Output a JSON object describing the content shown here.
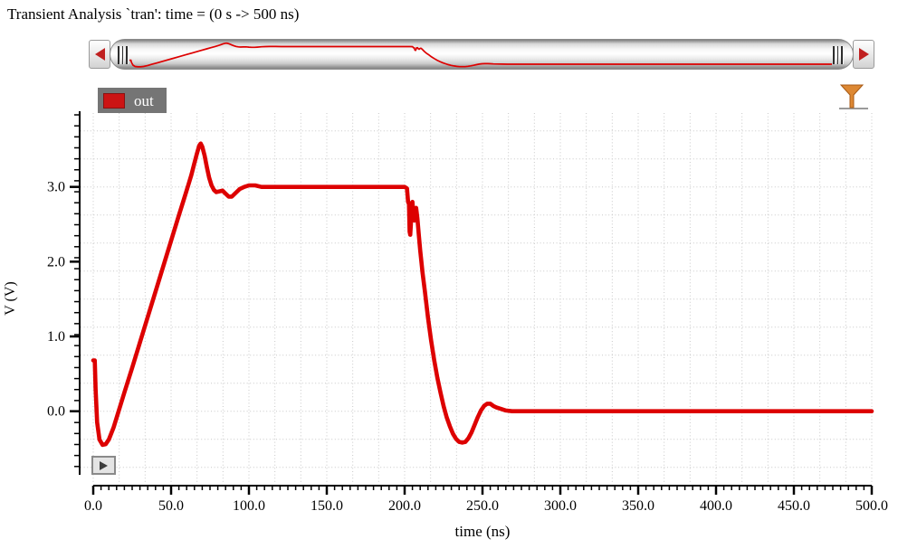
{
  "header": {
    "title": "Transient Analysis `tran': time = (0 s -> 500 ns)"
  },
  "overview_bar": {
    "left_arrow_icon": "scroll-left-arrow-icon",
    "right_arrow_icon": "scroll-right-arrow-icon",
    "left_grip_icon": "drag-grip-icon",
    "right_grip_icon": "drag-grip-icon",
    "arrow_color": "#c02020"
  },
  "legend": {
    "items": [
      {
        "label": "out",
        "color": "#cc1414"
      }
    ]
  },
  "toolbar": {
    "filter_icon": "funnel-icon",
    "filter_color": "#dd8833"
  },
  "strip_button": {
    "icon": "play-icon"
  },
  "chart_data": {
    "type": "line",
    "title": "Transient Analysis `tran': time = (0 s -> 500 ns)",
    "xlabel": "time (ns)",
    "ylabel": "V (V)",
    "xlim": [
      0,
      500
    ],
    "ylim": [
      -1,
      4
    ],
    "grid": "dotted",
    "x_ticks": [
      {
        "v": 0,
        "label": "0.0"
      },
      {
        "v": 50,
        "label": "50.0"
      },
      {
        "v": 100,
        "label": "100.0"
      },
      {
        "v": 150,
        "label": "150.0"
      },
      {
        "v": 200,
        "label": "200.0"
      },
      {
        "v": 250,
        "label": "250.0"
      },
      {
        "v": 300,
        "label": "300.0"
      },
      {
        "v": 350,
        "label": "350.0"
      },
      {
        "v": 400,
        "label": "400.0"
      },
      {
        "v": 450,
        "label": "450.0"
      },
      {
        "v": 500,
        "label": "500.0"
      }
    ],
    "x_minor_step": 5,
    "y_ticks": [
      {
        "v": 0,
        "label": "0.0"
      },
      {
        "v": 1,
        "label": "1.0"
      },
      {
        "v": 2,
        "label": "2.0"
      },
      {
        "v": 3,
        "label": "3.0"
      }
    ],
    "series": [
      {
        "name": "out",
        "color": "#dd0000",
        "points": [
          [
            0,
            0.68
          ],
          [
            1,
            0.68
          ],
          [
            1.5,
            0.3
          ],
          [
            2.5,
            -0.15
          ],
          [
            4,
            -0.38
          ],
          [
            6,
            -0.45
          ],
          [
            8,
            -0.44
          ],
          [
            10,
            -0.38
          ],
          [
            13,
            -0.22
          ],
          [
            16,
            -0.02
          ],
          [
            20,
            0.25
          ],
          [
            25,
            0.58
          ],
          [
            30,
            0.92
          ],
          [
            35,
            1.26
          ],
          [
            40,
            1.6
          ],
          [
            45,
            1.94
          ],
          [
            50,
            2.28
          ],
          [
            55,
            2.62
          ],
          [
            58,
            2.82
          ],
          [
            61,
            3.02
          ],
          [
            63,
            3.16
          ],
          [
            65,
            3.32
          ],
          [
            66.5,
            3.44
          ],
          [
            68,
            3.55
          ],
          [
            69,
            3.58
          ],
          [
            70,
            3.54
          ],
          [
            71.5,
            3.42
          ],
          [
            73,
            3.26
          ],
          [
            74.5,
            3.12
          ],
          [
            76,
            3.02
          ],
          [
            77.5,
            2.96
          ],
          [
            79,
            2.93
          ],
          [
            81,
            2.94
          ],
          [
            83,
            2.95
          ],
          [
            85,
            2.91
          ],
          [
            87,
            2.87
          ],
          [
            89,
            2.87
          ],
          [
            91,
            2.91
          ],
          [
            94,
            2.97
          ],
          [
            97,
            3.0
          ],
          [
            100,
            3.02
          ],
          [
            104,
            3.02
          ],
          [
            108,
            3.0
          ],
          [
            120,
            3.0
          ],
          [
            160,
            3.0
          ],
          [
            200,
            3.0
          ],
          [
            201.5,
            2.98
          ],
          [
            202.2,
            2.8
          ],
          [
            202.8,
            2.77
          ],
          [
            203.2,
            2.4
          ],
          [
            203.6,
            2.36
          ],
          [
            204,
            2.5
          ],
          [
            204.4,
            2.78
          ],
          [
            205,
            2.8
          ],
          [
            205.6,
            2.65
          ],
          [
            206.2,
            2.55
          ],
          [
            206.8,
            2.68
          ],
          [
            207.4,
            2.72
          ],
          [
            208.2,
            2.58
          ],
          [
            209,
            2.38
          ],
          [
            210,
            2.15
          ],
          [
            211.5,
            1.85
          ],
          [
            213,
            1.6
          ],
          [
            215,
            1.25
          ],
          [
            217,
            0.95
          ],
          [
            219,
            0.68
          ],
          [
            221,
            0.45
          ],
          [
            223,
            0.25
          ],
          [
            225,
            0.07
          ],
          [
            227,
            -0.08
          ],
          [
            229,
            -0.2
          ],
          [
            231,
            -0.3
          ],
          [
            233,
            -0.37
          ],
          [
            235,
            -0.41
          ],
          [
            237,
            -0.42
          ],
          [
            239,
            -0.41
          ],
          [
            241,
            -0.36
          ],
          [
            243,
            -0.28
          ],
          [
            245,
            -0.18
          ],
          [
            247,
            -0.08
          ],
          [
            249,
            0.01
          ],
          [
            251,
            0.07
          ],
          [
            253,
            0.1
          ],
          [
            255,
            0.1
          ],
          [
            257,
            0.07
          ],
          [
            259,
            0.05
          ],
          [
            262,
            0.03
          ],
          [
            265,
            0.01
          ],
          [
            269,
            0.0
          ],
          [
            275,
            0.0
          ],
          [
            290,
            0.0
          ],
          [
            320,
            0.0
          ],
          [
            360,
            0.0
          ],
          [
            400,
            0.0
          ],
          [
            450,
            0.0
          ],
          [
            500,
            0.0
          ]
        ]
      }
    ]
  }
}
